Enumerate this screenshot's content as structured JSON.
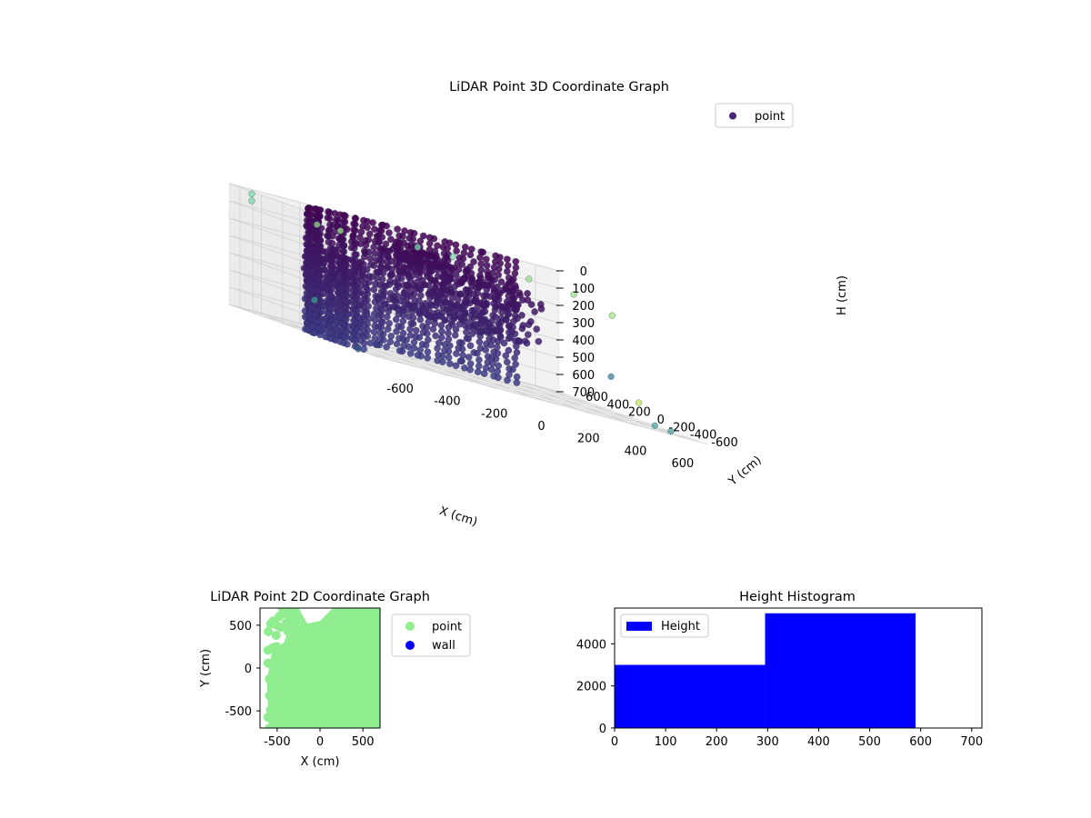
{
  "chart_data": [
    {
      "type": "scatter",
      "subtype": "3d",
      "title": "LiDAR Point 3D Coordinate Graph",
      "xlabel": "X (cm)",
      "ylabel": "Y (cm)",
      "zlabel": "H (cm)",
      "xlim": [
        -700,
        700
      ],
      "ylim": [
        -700,
        700
      ],
      "zlim": [
        700,
        0
      ],
      "xticks": [
        "-600",
        "-400",
        "-200",
        "0",
        "200",
        "400",
        "600"
      ],
      "yticks": [
        "-600",
        "-400",
        "-200",
        "0",
        "200",
        "400",
        "600"
      ],
      "zticks": [
        "0",
        "100",
        "200",
        "300",
        "400",
        "500",
        "600",
        "700"
      ],
      "zaxis_inverted": true,
      "colormap": "viridis",
      "grid": true,
      "legend": {
        "position": "top-right",
        "entries": [
          "point"
        ]
      },
      "series": [
        {
          "name": "point",
          "color": "#482677",
          "structure": "curved wall arc of stacked points from roughly (-650,-300) sweeping to (600,600) at heights 0-700, plus a dense central cluster around (-200..300, 0..300) at heights 100-450",
          "outliers": [
            {
              "x": -650,
              "y": 600,
              "h": 20,
              "color": "#7fd8ae"
            },
            {
              "x": -650,
              "y": 600,
              "h": 60,
              "color": "#7fd8ae"
            },
            {
              "x": -350,
              "y": 650,
              "h": 100,
              "color": "#9bdc8c"
            },
            {
              "x": -250,
              "y": 650,
              "h": 100,
              "color": "#9bdc8c"
            },
            {
              "x": 100,
              "y": 700,
              "h": 80,
              "color": "#7fd8ae"
            },
            {
              "x": 250,
              "y": 700,
              "h": 80,
              "color": "#7fd8ae"
            },
            {
              "x": 550,
              "y": 650,
              "h": 90,
              "color": "#9bdc8c"
            },
            {
              "x": 650,
              "y": 450,
              "h": 100,
              "color": "#9bdc8c"
            },
            {
              "x": 700,
              "y": 200,
              "h": 150,
              "color": "#a8e07f"
            },
            {
              "x": 650,
              "y": 100,
              "h": 500,
              "color": "#3d7da0"
            },
            {
              "x": 700,
              "y": -50,
              "h": 600,
              "color": "#c6e55e"
            },
            {
              "x": 700,
              "y": -200,
              "h": 700,
              "color": "#50a0a0"
            },
            {
              "x": 700,
              "y": -350,
              "h": 700,
              "color": "#50a0a0"
            },
            {
              "x": -700,
              "y": -100,
              "h": 500,
              "color": "#3aa08a"
            },
            {
              "x": -650,
              "y": -400,
              "h": 700,
              "color": "#34568b"
            }
          ]
        }
      ]
    },
    {
      "type": "scatter",
      "title": "LiDAR Point 2D Coordinate Graph",
      "xlabel": "X (cm)",
      "ylabel": "Y (cm)",
      "xlim": [
        -700,
        700
      ],
      "ylim": [
        -700,
        700
      ],
      "xticks": [
        "-500",
        "0",
        "500"
      ],
      "yticks": [
        "-500",
        "0",
        "500"
      ],
      "legend": {
        "position": "outside-right",
        "entries": [
          "point",
          "wall"
        ]
      },
      "series": [
        {
          "name": "point",
          "color": "#90ee90",
          "region": "dense fill covering most of the plot from x=-700 to 700, y=-700 to 700, with gaps near the top-left and left edge"
        },
        {
          "name": "wall",
          "color": "#0000ff",
          "points": []
        }
      ]
    },
    {
      "type": "bar",
      "subtype": "histogram",
      "title": "Height Histogram",
      "xlim": [
        0,
        720
      ],
      "ylim": [
        0,
        5700
      ],
      "xticks": [
        "0",
        "100",
        "200",
        "300",
        "400",
        "500",
        "600",
        "700"
      ],
      "yticks": [
        "0",
        "2000",
        "4000"
      ],
      "legend": {
        "position": "top-left",
        "entries": [
          "Height"
        ]
      },
      "series": [
        {
          "name": "Height",
          "color": "#0000ff",
          "bins": [
            {
              "from": 0,
              "to": 295,
              "count": 3000
            },
            {
              "from": 295,
              "to": 590,
              "count": 5450
            }
          ]
        }
      ]
    }
  ]
}
